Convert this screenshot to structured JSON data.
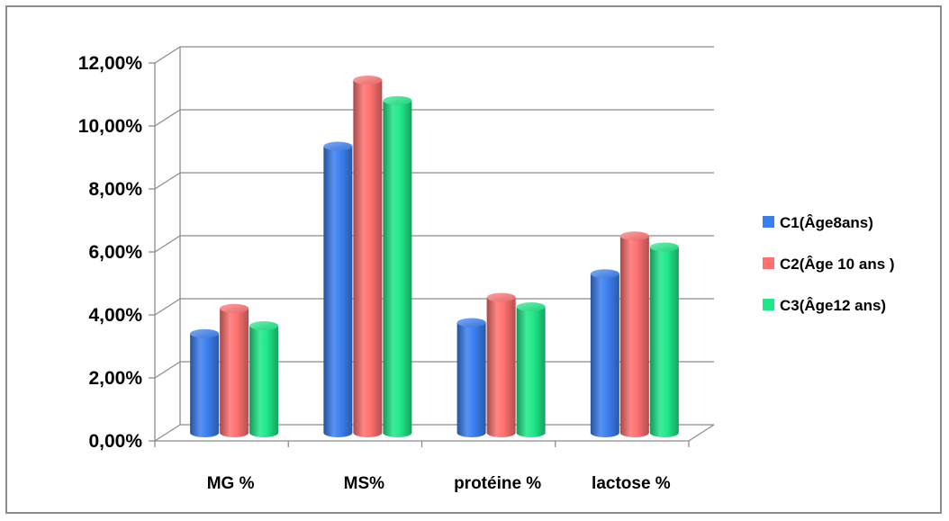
{
  "chart_data": {
    "type": "bar",
    "subtype": "3d-cylinder-clustered",
    "categories": [
      "MG %",
      "MS%",
      "protéine %",
      "lactose %"
    ],
    "series": [
      {
        "name": "C1(Âge8ans)",
        "color": "#3a7ff0",
        "values": [
          3.15,
          9.1,
          3.5,
          5.05
        ]
      },
      {
        "name": "C2(Âge 10 ans )",
        "color": "#ff7070",
        "values": [
          3.95,
          11.2,
          4.3,
          6.25
        ]
      },
      {
        "name": "C3(Âge12 ans)",
        "color": "#1fe889",
        "values": [
          3.4,
          10.55,
          4.0,
          5.9
        ]
      }
    ],
    "y_ticks": [
      "0,00%",
      "2,00%",
      "4,00%",
      "6,00%",
      "8,00%",
      "10,00%",
      "12,00%"
    ],
    "ylim": [
      0,
      12
    ],
    "y_unit": "%",
    "grid": true,
    "legend_position": "right"
  }
}
